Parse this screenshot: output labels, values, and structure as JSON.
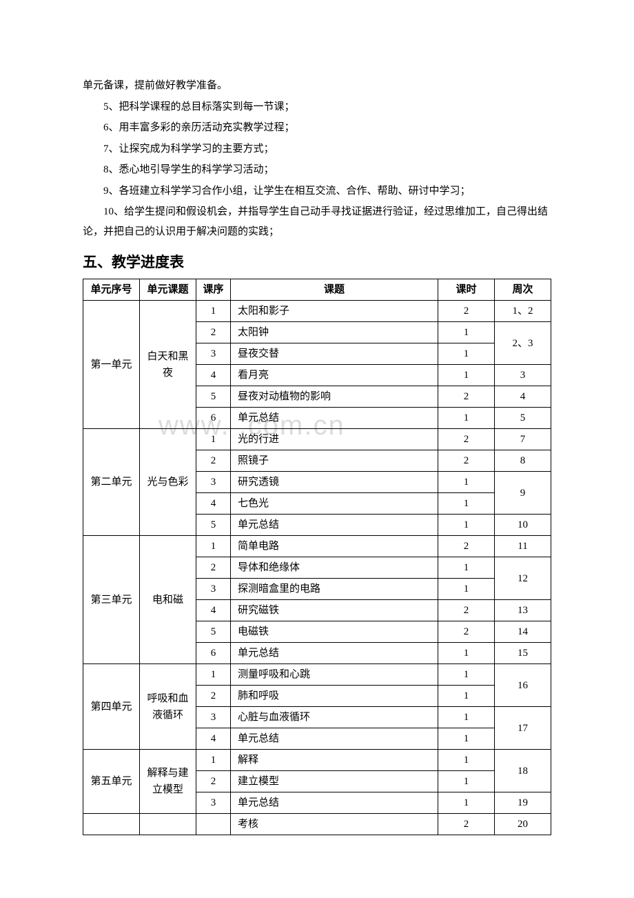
{
  "paragraphs": {
    "p0": "单元备课，提前做好教学准备。",
    "p1": "5、把科学课程的总目标落实到每一节课；",
    "p2": "6、用丰富多彩的亲历活动充实教学过程；",
    "p3": "7、让探究成为科学学习的主要方式；",
    "p4": "8、悉心地引导学生的科学学习活动；",
    "p5": "9、各班建立科学学习合作小组，让学生在相互交流、合作、帮助、研讨中学习；",
    "p6": "10、给学生提问和假设机会，并指导学生自己动手寻找证据进行验证，经过思维加工，自己得出结论，并把自己的认识用于解决问题的实践；"
  },
  "section_title": "五、教学进度表",
  "watermark": "www.       .com.cn",
  "table": {
    "headers": {
      "unit_num": "单元序号",
      "unit_title": "单元课题",
      "seq": "课序",
      "topic": "课题",
      "hours": "课时",
      "week": "周次"
    },
    "units": [
      {
        "unit_num": "第一单元",
        "unit_title": "白天和黑夜",
        "rows": [
          {
            "seq": "1",
            "topic": "太阳和影子",
            "hours": "2",
            "week": "1、2",
            "week_rowspan": 1
          },
          {
            "seq": "2",
            "topic": "太阳钟",
            "hours": "1",
            "week": "2、3",
            "week_rowspan": 2
          },
          {
            "seq": "3",
            "topic": "昼夜交替",
            "hours": "1"
          },
          {
            "seq": "4",
            "topic": "看月亮",
            "hours": "1",
            "week": "3",
            "week_rowspan": 1
          },
          {
            "seq": "5",
            "topic": "昼夜对动植物的影响",
            "hours": "2",
            "week": "4",
            "week_rowspan": 1
          },
          {
            "seq": "6",
            "topic": "单元总结",
            "hours": "1",
            "week": "5",
            "week_rowspan": 1
          }
        ]
      },
      {
        "unit_num": "第二单元",
        "unit_title": "光与色彩",
        "rows": [
          {
            "seq": "1",
            "topic": "光的行进",
            "hours": "2",
            "week": "7",
            "week_rowspan": 1
          },
          {
            "seq": "2",
            "topic": "照镜子",
            "hours": "2",
            "week": "8",
            "week_rowspan": 1
          },
          {
            "seq": "3",
            "topic": "研究透镜",
            "hours": "1",
            "week": "9",
            "week_rowspan": 2
          },
          {
            "seq": "4",
            "topic": "七色光",
            "hours": "1"
          },
          {
            "seq": "5",
            "topic": "单元总结",
            "hours": "1",
            "week": "10",
            "week_rowspan": 1
          }
        ]
      },
      {
        "unit_num": "第三单元",
        "unit_title": "电和磁",
        "rows": [
          {
            "seq": "1",
            "topic": "简单电路",
            "hours": "2",
            "week": "11",
            "week_rowspan": 1
          },
          {
            "seq": "2",
            "topic": "导体和绝缘体",
            "hours": "1",
            "week": "12",
            "week_rowspan": 2
          },
          {
            "seq": "3",
            "topic": "探测暗盒里的电路",
            "hours": "1"
          },
          {
            "seq": "4",
            "topic": "研究磁铁",
            "hours": "2",
            "week": "13",
            "week_rowspan": 1
          },
          {
            "seq": "5",
            "topic": "电磁铁",
            "hours": "2",
            "week": "14",
            "week_rowspan": 1
          },
          {
            "seq": "6",
            "topic": "单元总结",
            "hours": "1",
            "week": "15",
            "week_rowspan": 1
          }
        ]
      },
      {
        "unit_num": "第四单元",
        "unit_title": "呼吸和血液循环",
        "rows": [
          {
            "seq": "1",
            "topic": "测量呼吸和心跳",
            "hours": "1",
            "week": "16",
            "week_rowspan": 2
          },
          {
            "seq": "2",
            "topic": "肺和呼吸",
            "hours": "1"
          },
          {
            "seq": "3",
            "topic": "心脏与血液循环",
            "hours": "1",
            "week": "17",
            "week_rowspan": 2
          },
          {
            "seq": "4",
            "topic": "单元总结",
            "hours": "1"
          }
        ]
      },
      {
        "unit_num": "第五单元",
        "unit_title": "解释与建立模型",
        "rows": [
          {
            "seq": "1",
            "topic": "解释",
            "hours": "1",
            "week": "18",
            "week_rowspan": 2
          },
          {
            "seq": "2",
            "topic": "建立模型",
            "hours": "1"
          },
          {
            "seq": "3",
            "topic": "单元总结",
            "hours": "1",
            "week": "19",
            "week_rowspan": 1
          }
        ]
      }
    ],
    "final_row": {
      "topic": "考核",
      "hours": "2",
      "week": "20"
    }
  }
}
